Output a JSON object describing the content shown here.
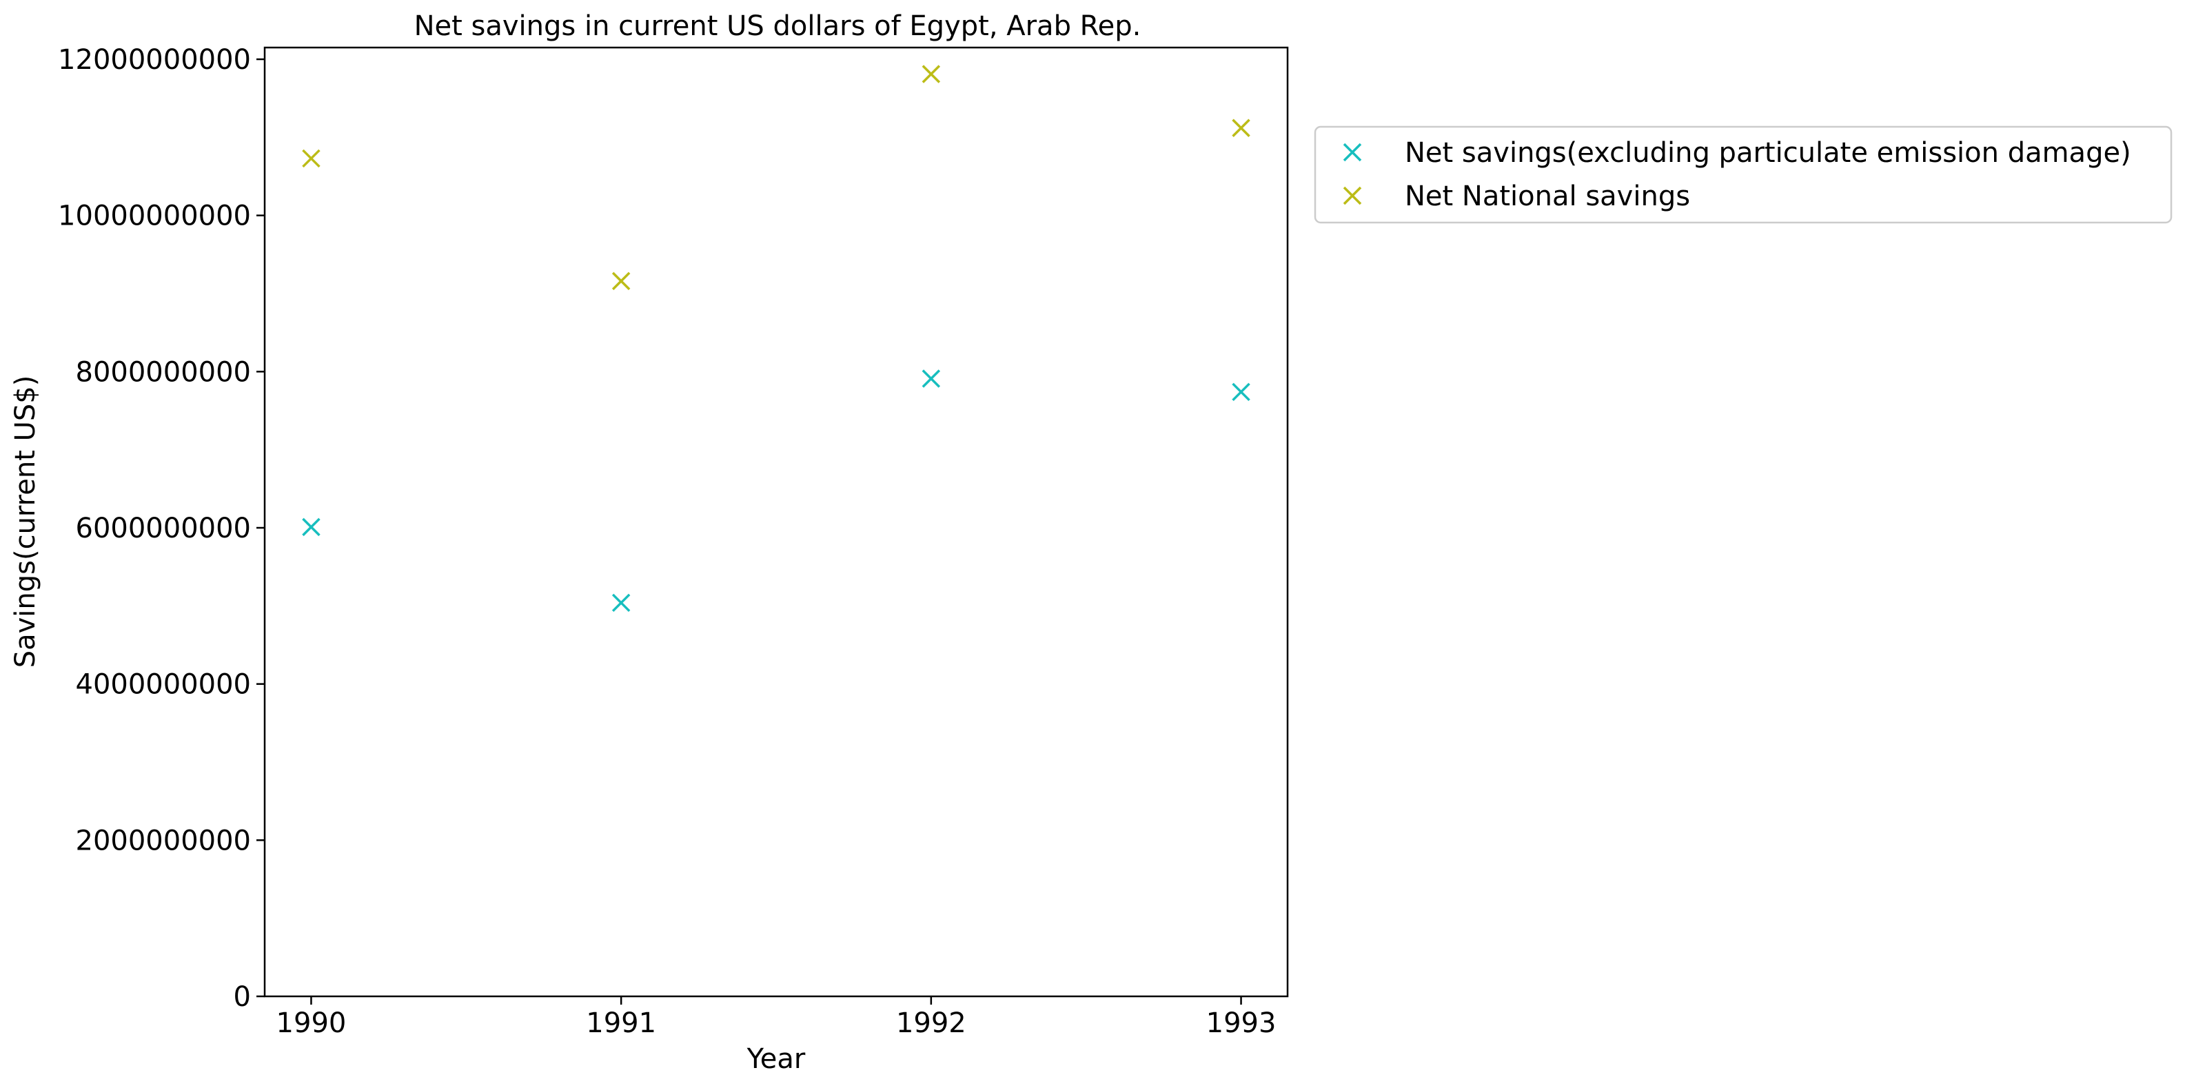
{
  "chart_data": {
    "type": "scatter",
    "title": "Net savings in current US dollars of Egypt, Arab Rep.",
    "xlabel": "Year",
    "ylabel": "Savings(current US$)",
    "x": [
      1990,
      1991,
      1992,
      1993
    ],
    "x_tick_labels": [
      "1990",
      "1991",
      "1992",
      "1993"
    ],
    "y_ticks": [
      0,
      2000000000,
      4000000000,
      6000000000,
      8000000000,
      10000000000,
      12000000000
    ],
    "y_tick_labels": [
      "0",
      "2000000000",
      "4000000000",
      "6000000000",
      "8000000000",
      "10000000000",
      "12000000000"
    ],
    "xlim": [
      1989.85,
      1993.15
    ],
    "ylim": [
      0,
      12150000000
    ],
    "grid": false,
    "legend_position": "outside right, upper",
    "marker": "x",
    "series": [
      {
        "name": "Net savings(excluding particulate emission damage)",
        "color": "#17bebe",
        "values": [
          6010000000,
          5040000000,
          7910000000,
          7740000000
        ]
      },
      {
        "name": "Net National savings",
        "color": "#bcbc17",
        "values": [
          10730000000,
          9160000000,
          11810000000,
          11120000000
        ]
      }
    ]
  }
}
